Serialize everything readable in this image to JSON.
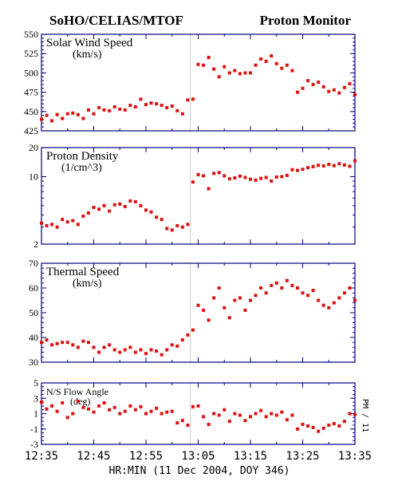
{
  "header": {
    "left_title": "SoHO/CELIAS/MTOF",
    "right_title": "Proton Monitor"
  },
  "footer": {
    "xlabel": "HR:MIN (11 Dec 2004, DOY 346)",
    "x_ticks": [
      "12:35",
      "12:45",
      "12:55",
      "13:05",
      "13:15",
      "13:25",
      "13:35"
    ]
  },
  "side_label": "PM / 11",
  "colors": {
    "marker": "#dd1111",
    "axis": "#000080",
    "text": "#000000",
    "divider": "#c8c8c8"
  },
  "chart_data": [
    {
      "type": "scatter",
      "title": "Solar Wind Speed",
      "unit": "(km/s)",
      "ylim": [
        425,
        550
      ],
      "scale": "linear",
      "y_ticks": [
        "550",
        "525",
        "500",
        "475",
        "450",
        "425"
      ],
      "x_range_minutes": [
        0,
        60
      ],
      "shock_time_minutes": 28.5,
      "x": [
        0,
        1,
        2,
        3,
        4,
        5,
        6,
        7,
        8,
        9,
        10,
        11,
        12,
        13,
        14,
        15,
        16,
        17,
        18,
        19,
        20,
        21,
        22,
        23,
        24,
        25,
        26,
        27,
        28,
        29,
        30,
        31,
        32,
        33,
        34,
        35,
        36,
        37,
        38,
        39,
        40,
        41,
        42,
        43,
        44,
        45,
        46,
        47,
        48,
        49,
        50,
        51,
        52,
        53,
        54,
        55,
        56,
        57,
        58,
        59,
        60
      ],
      "values": [
        440,
        445,
        438,
        446,
        441,
        447,
        448,
        446,
        441,
        452,
        447,
        455,
        452,
        451,
        456,
        453,
        452,
        458,
        456,
        466,
        459,
        461,
        460,
        458,
        455,
        457,
        451,
        447,
        465,
        466,
        511,
        510,
        520,
        505,
        495,
        508,
        500,
        503,
        499,
        500,
        500,
        510,
        518,
        515,
        522,
        512,
        506,
        510,
        503,
        475,
        480,
        490,
        485,
        488,
        482,
        476,
        478,
        474,
        481,
        486,
        472
      ]
    },
    {
      "type": "scatter",
      "title": "Proton Density",
      "unit": "(1/cm^3)",
      "ylim": [
        2,
        20
      ],
      "scale": "log",
      "y_ticks": [
        "20",
        "10",
        "2"
      ],
      "x_range_minutes": [
        0,
        60
      ],
      "shock_time_minutes": 28.5,
      "x": [
        0,
        1,
        2,
        3,
        4,
        5,
        6,
        7,
        8,
        9,
        10,
        11,
        12,
        13,
        14,
        15,
        16,
        17,
        18,
        19,
        20,
        21,
        22,
        23,
        24,
        25,
        26,
        27,
        28,
        29,
        30,
        31,
        32,
        33,
        34,
        35,
        36,
        37,
        38,
        39,
        40,
        41,
        42,
        43,
        44,
        45,
        46,
        47,
        48,
        49,
        50,
        51,
        52,
        53,
        54,
        55,
        56,
        57,
        58,
        59,
        60
      ],
      "values": [
        3.3,
        3.1,
        3.2,
        3.0,
        3.6,
        3.4,
        3.5,
        3.2,
        3.9,
        4.2,
        4.8,
        4.6,
        5.0,
        4.4,
        5.1,
        5.2,
        4.9,
        5.6,
        5.5,
        5.0,
        4.5,
        4.3,
        3.8,
        3.6,
        2.9,
        2.8,
        3.1,
        3.0,
        3.2,
        8.8,
        10.5,
        10.2,
        7.5,
        10.8,
        11.0,
        10.2,
        9.5,
        9.7,
        10.1,
        9.8,
        9.4,
        9.2,
        9.6,
        9.8,
        9.0,
        9.9,
        10.0,
        10.3,
        11.8,
        11.6,
        11.9,
        12.4,
        12.7,
        13.1,
        12.9,
        13.4,
        13.0,
        13.6,
        13.2,
        12.8,
        14.6
      ]
    },
    {
      "type": "scatter",
      "title": "Thermal Speed",
      "unit": "(km/s)",
      "ylim": [
        30,
        70
      ],
      "scale": "linear",
      "y_ticks": [
        "70",
        "60",
        "50",
        "40",
        "30"
      ],
      "x_range_minutes": [
        0,
        60
      ],
      "shock_time_minutes": 28.5,
      "x": [
        0,
        1,
        2,
        3,
        4,
        5,
        6,
        7,
        8,
        9,
        10,
        11,
        12,
        13,
        14,
        15,
        16,
        17,
        18,
        19,
        20,
        21,
        22,
        23,
        24,
        25,
        26,
        27,
        28,
        29,
        30,
        31,
        32,
        33,
        34,
        35,
        36,
        37,
        38,
        39,
        40,
        41,
        42,
        43,
        44,
        45,
        46,
        47,
        48,
        49,
        50,
        51,
        52,
        53,
        54,
        55,
        56,
        57,
        58,
        59,
        60
      ],
      "values": [
        38,
        39,
        37,
        37.5,
        38,
        38,
        37,
        36,
        38.5,
        38,
        36,
        34,
        36,
        37,
        35,
        34,
        35,
        36,
        34,
        35,
        33.5,
        35,
        34.5,
        33,
        35,
        37,
        36.5,
        39,
        41,
        43,
        53,
        51,
        47,
        56,
        60,
        52,
        48,
        55,
        56,
        51,
        55,
        57,
        60,
        58,
        61,
        62,
        60,
        63,
        61,
        60,
        58,
        57,
        59,
        55,
        53,
        52,
        54,
        56,
        58,
        60,
        55
      ]
    },
    {
      "type": "scatter",
      "title": "N/S Flow Angle",
      "unit": "(deg)",
      "ylim": [
        -3,
        5
      ],
      "scale": "linear",
      "y_ticks": [
        "5",
        "3",
        "1",
        "-1",
        "-3"
      ],
      "x_range_minutes": [
        0,
        60
      ],
      "shock_time_minutes": 28.5,
      "x": [
        0,
        1,
        2,
        3,
        4,
        5,
        6,
        7,
        8,
        9,
        10,
        11,
        12,
        13,
        14,
        15,
        16,
        17,
        18,
        19,
        20,
        21,
        22,
        23,
        24,
        25,
        26,
        27,
        28,
        29,
        30,
        31,
        32,
        33,
        34,
        35,
        36,
        37,
        38,
        39,
        40,
        41,
        42,
        43,
        44,
        45,
        46,
        47,
        48,
        49,
        50,
        51,
        52,
        53,
        54,
        55,
        56,
        57,
        58,
        59,
        60
      ],
      "values": [
        2.5,
        1.6,
        2.0,
        1.3,
        2.4,
        0.5,
        1.0,
        2.6,
        1.8,
        1.6,
        1.2,
        2.0,
        2.4,
        1.5,
        1.8,
        1.0,
        1.3,
        2.0,
        1.5,
        1.9,
        1.0,
        1.3,
        1.7,
        1.0,
        1.2,
        1.3,
        -0.2,
        0.1,
        -0.5,
        1.9,
        2.0,
        0.6,
        -0.4,
        1.0,
        0.8,
        1.5,
        0.0,
        1.0,
        0.8,
        0.1,
        0.6,
        1.0,
        1.4,
        0.6,
        1.0,
        0.8,
        1.2,
        0.2,
        0.8,
        -1.0,
        -0.4,
        -0.6,
        -0.8,
        -1.3,
        -0.9,
        -0.5,
        -0.3,
        -0.6,
        0.0,
        1.0,
        0.9
      ]
    }
  ]
}
